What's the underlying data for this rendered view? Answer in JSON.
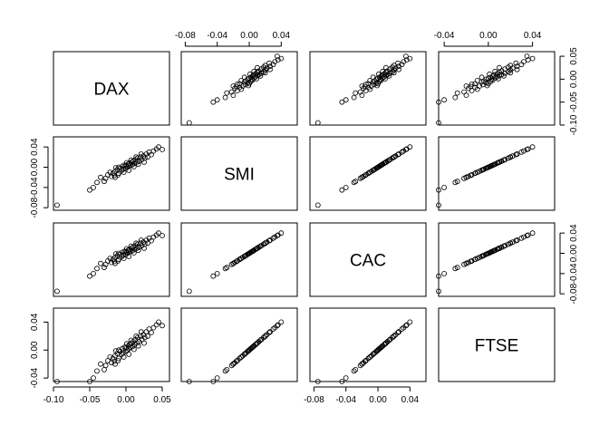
{
  "chart_data": {
    "type": "scatter",
    "subtype": "pairs-matrix",
    "title": "",
    "variables": [
      "DAX",
      "SMI",
      "CAC",
      "FTSE"
    ],
    "ranges": {
      "DAX": [
        -0.1,
        0.06
      ],
      "SMI": [
        -0.085,
        0.06
      ],
      "CAC": [
        -0.085,
        0.06
      ],
      "FTSE": [
        -0.045,
        0.06
      ]
    },
    "axis_ticks": {
      "DAX": [
        -0.1,
        -0.05,
        0.0,
        0.05
      ],
      "SMI": [
        -0.08,
        -0.04,
        0.0,
        0.04
      ],
      "CAC": [
        -0.08,
        -0.04,
        0.0,
        0.04
      ],
      "FTSE": [
        -0.04,
        0.0,
        0.04
      ]
    },
    "axis_tick_labels": {
      "DAX": [
        "-0.10",
        "-0.05",
        "0.00",
        "0.05"
      ],
      "SMI": [
        "-0.08",
        "-0.04",
        "0.00",
        "0.04"
      ],
      "CAC": [
        "-0.08",
        "-0.04",
        "0.00",
        "0.04"
      ],
      "FTSE": [
        "-0.04",
        "0.00",
        "0.04"
      ]
    },
    "axis_placement": {
      "x": [
        {
          "var": "DAX",
          "side": "bottom"
        },
        {
          "var": "SMI",
          "side": "top"
        },
        {
          "var": "CAC",
          "side": "bottom"
        },
        {
          "var": "FTSE",
          "side": "top"
        }
      ],
      "y": [
        {
          "var": "DAX",
          "side": "right"
        },
        {
          "var": "SMI",
          "side": "left"
        },
        {
          "var": "CAC",
          "side": "right"
        },
        {
          "var": "FTSE",
          "side": "left"
        }
      ]
    },
    "series_points": [
      [
        -0.095,
        -0.075
      ],
      [
        -0.045,
        -0.04
      ],
      [
        -0.04,
        -0.03
      ],
      [
        -0.05,
        -0.045
      ],
      [
        -0.035,
        -0.02
      ],
      [
        -0.03,
        -0.028
      ],
      [
        -0.025,
        -0.015
      ],
      [
        -0.028,
        -0.022
      ],
      [
        -0.02,
        -0.018
      ],
      [
        -0.022,
        -0.01
      ],
      [
        -0.018,
        -0.012
      ],
      [
        -0.015,
        -0.02
      ],
      [
        -0.012,
        -0.005
      ],
      [
        -0.015,
        -0.008
      ],
      [
        -0.01,
        -0.012
      ],
      [
        -0.008,
        -0.002
      ],
      [
        -0.01,
        0.0
      ],
      [
        -0.006,
        -0.006
      ],
      [
        -0.005,
        0.002
      ],
      [
        -0.004,
        -0.004
      ],
      [
        -0.002,
        0.004
      ],
      [
        0.0,
        -0.002
      ],
      [
        0.0,
        0.003
      ],
      [
        0.002,
        0.0
      ],
      [
        0.003,
        0.006
      ],
      [
        0.004,
        0.002
      ],
      [
        0.005,
        0.008
      ],
      [
        0.006,
        0.004
      ],
      [
        0.008,
        0.01
      ],
      [
        0.009,
        0.005
      ],
      [
        0.01,
        0.012
      ],
      [
        0.012,
        0.008
      ],
      [
        0.013,
        0.015
      ],
      [
        0.015,
        0.01
      ],
      [
        0.016,
        0.018
      ],
      [
        0.018,
        0.012
      ],
      [
        0.02,
        0.02
      ],
      [
        0.022,
        0.015
      ],
      [
        0.024,
        0.022
      ],
      [
        0.026,
        0.018
      ],
      [
        0.028,
        0.026
      ],
      [
        0.03,
        0.02
      ],
      [
        0.032,
        0.03
      ],
      [
        0.035,
        0.025
      ],
      [
        0.038,
        0.032
      ],
      [
        0.042,
        0.036
      ],
      [
        0.045,
        0.04
      ],
      [
        0.05,
        0.035
      ],
      [
        -0.016,
        -0.016
      ],
      [
        -0.014,
        -0.001
      ],
      [
        -0.011,
        -0.015
      ],
      [
        -0.003,
        -0.01
      ],
      [
        0.001,
        0.009
      ],
      [
        0.004,
        -0.006
      ],
      [
        0.007,
        0.014
      ],
      [
        0.011,
        0.001
      ],
      [
        0.014,
        0.02
      ],
      [
        0.017,
        0.006
      ],
      [
        0.021,
        0.026
      ],
      [
        0.025,
        0.01
      ]
    ]
  }
}
